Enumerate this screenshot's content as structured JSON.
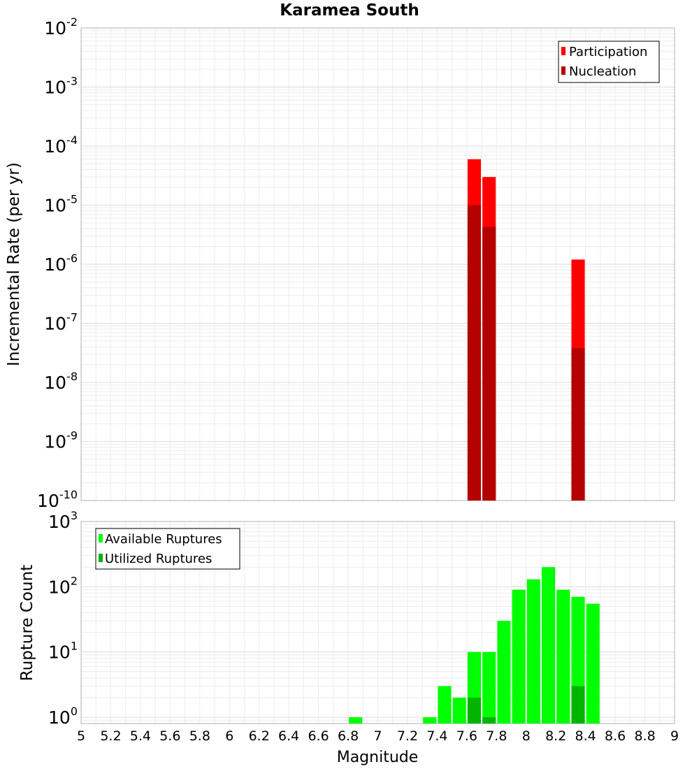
{
  "chart_data": [
    {
      "type": "bar",
      "title": "Karamea South",
      "xlabel": "",
      "ylabel": "Incremental Rate (per yr)",
      "yscale": "log",
      "xlim": [
        5,
        9
      ],
      "ylim": [
        1e-10,
        0.01
      ],
      "ytick_exponents": [
        -10,
        -9,
        -8,
        -7,
        -6,
        -5,
        -4,
        -3,
        -2
      ],
      "bar_width": 0.09,
      "grid": true,
      "legend_position": "top-right",
      "series": [
        {
          "name": "Participation",
          "color": "#ff0000",
          "x": [
            7.65,
            7.75,
            8.35
          ],
          "values": [
            6e-05,
            3e-05,
            1.2e-06
          ]
        },
        {
          "name": "Nucleation",
          "color": "#b40000",
          "x": [
            7.65,
            7.75,
            8.35
          ],
          "values": [
            1e-05,
            4.3e-06,
            3.8e-08
          ]
        }
      ]
    },
    {
      "type": "bar",
      "title": "",
      "xlabel": "Magnitude",
      "ylabel": "Rupture Count",
      "yscale": "log",
      "xlim": [
        5,
        9
      ],
      "ylim": [
        0.8,
        1000
      ],
      "ytick_exponents": [
        0,
        1,
        2,
        3
      ],
      "xticks": [
        "5",
        "5.2",
        "5.4",
        "5.6",
        "5.8",
        "6",
        "6.2",
        "6.4",
        "6.6",
        "6.8",
        "7",
        "7.2",
        "7.4",
        "7.6",
        "7.8",
        "8",
        "8.2",
        "8.4",
        "8.6",
        "8.8",
        "9"
      ],
      "bar_width": 0.09,
      "grid": true,
      "legend_position": "top-left",
      "series": [
        {
          "name": "Available Ruptures",
          "color": "#00ff00",
          "x": [
            6.85,
            7.35,
            7.45,
            7.55,
            7.65,
            7.75,
            7.85,
            7.95,
            8.05,
            8.15,
            8.25,
            8.35,
            8.45
          ],
          "values": [
            1,
            1,
            3,
            2,
            10,
            10,
            30,
            90,
            130,
            200,
            90,
            70,
            55
          ]
        },
        {
          "name": "Utilized Ruptures",
          "color": "#00b400",
          "x": [
            7.65,
            7.75,
            8.35
          ],
          "values": [
            2,
            1,
            3
          ]
        }
      ]
    }
  ]
}
